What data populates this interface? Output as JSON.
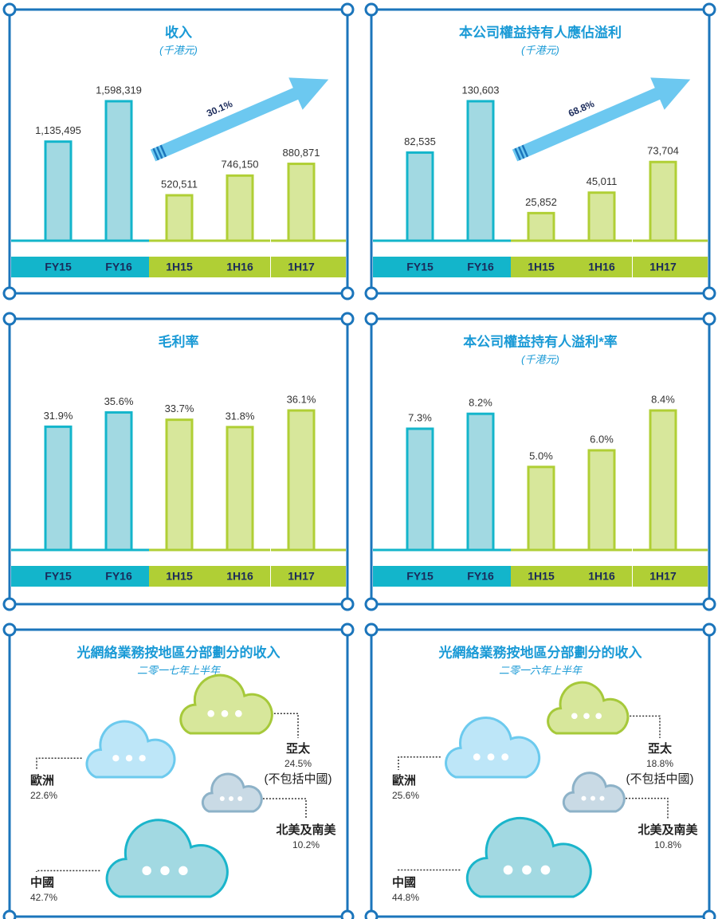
{
  "chart_data": [
    {
      "type": "bar",
      "title": "收入",
      "subtitle": "(千港元)",
      "categories": [
        "FY15",
        "FY16",
        "1H15",
        "1H16",
        "1H17"
      ],
      "values": [
        1135495,
        1598319,
        520511,
        746150,
        880871
      ],
      "value_labels": [
        "1,135,495",
        "1,598,319",
        "520,511",
        "746,150",
        "880,871"
      ],
      "colors": [
        "#a2d9e2",
        "#a2d9e2",
        "#d7e79b",
        "#d7e79b",
        "#d7e79b"
      ],
      "edge_colors": [
        "#13b5cb",
        "#13b5cb",
        "#b0cf35",
        "#b0cf35",
        "#b0cf35"
      ],
      "arrow_label": "30.1%"
    },
    {
      "type": "bar",
      "title": "本公司權益持有人應佔溢利",
      "subtitle": "(千港元)",
      "categories": [
        "FY15",
        "FY16",
        "1H15",
        "1H16",
        "1H17"
      ],
      "values": [
        82535,
        130603,
        25852,
        45011,
        73704
      ],
      "value_labels": [
        "82,535",
        "130,603",
        "25,852",
        "45,011",
        "73,704"
      ],
      "colors": [
        "#a2d9e2",
        "#a2d9e2",
        "#d7e79b",
        "#d7e79b",
        "#d7e79b"
      ],
      "edge_colors": [
        "#13b5cb",
        "#13b5cb",
        "#b0cf35",
        "#b0cf35",
        "#b0cf35"
      ],
      "arrow_label": "68.8%"
    },
    {
      "type": "bar",
      "title": "毛利率",
      "categories": [
        "FY15",
        "FY16",
        "1H15",
        "1H16",
        "1H17"
      ],
      "values": [
        31.9,
        35.6,
        33.7,
        31.8,
        36.1
      ],
      "value_labels": [
        "31.9%",
        "35.6%",
        "33.7%",
        "31.8%",
        "36.1%"
      ],
      "colors": [
        "#a2d9e2",
        "#a2d9e2",
        "#d7e79b",
        "#d7e79b",
        "#d7e79b"
      ],
      "edge_colors": [
        "#13b5cb",
        "#13b5cb",
        "#b0cf35",
        "#b0cf35",
        "#b0cf35"
      ]
    },
    {
      "type": "bar",
      "title": "本公司權益持有人溢利*率",
      "subtitle": "(千港元)",
      "categories": [
        "FY15",
        "FY16",
        "1H15",
        "1H16",
        "1H17"
      ],
      "values": [
        7.3,
        8.2,
        5,
        6,
        8.4
      ],
      "value_labels": [
        "7.3%",
        "8.2%",
        "5.0%",
        "6.0%",
        "8.4%"
      ],
      "colors": [
        "#a2d9e2",
        "#a2d9e2",
        "#d7e79b",
        "#d7e79b",
        "#d7e79b"
      ],
      "edge_colors": [
        "#13b5cb",
        "#13b5cb",
        "#b0cf35",
        "#b0cf35",
        "#b0cf35"
      ]
    },
    {
      "type": "cloud",
      "title": "光網絡業務按地區分部劃分的收入",
      "subtitle": "二零一七年上半年",
      "categories": [
        "歐洲",
        "亞太",
        "北美及南美",
        "中國"
      ],
      "values": [
        22.6,
        24.5,
        10.2,
        42.7
      ],
      "value_labels": [
        "22.6%",
        "24.5%",
        "10.2%",
        "42.7%"
      ],
      "colors": [
        "#bde6f8",
        "#d7e79b",
        "#c9dae5",
        "#a2d9e2"
      ],
      "edge_colors": [
        "#6ccaee",
        "#a6c93a",
        "#8db2c8",
        "#1ab5cb"
      ],
      "note": "(不包括中國)"
    },
    {
      "type": "cloud",
      "title": "光網絡業務按地區分部劃分的收入",
      "subtitle": "二零一六年上半年",
      "categories": [
        "歐洲",
        "亞太",
        "北美及南美",
        "中國"
      ],
      "values": [
        25.6,
        18.8,
        10.8,
        44.8
      ],
      "value_labels": [
        "25.6%",
        "18.8%",
        "10.8%",
        "44.8%"
      ],
      "colors": [
        "#bde6f8",
        "#d7e79b",
        "#c9dae5",
        "#a2d9e2"
      ],
      "edge_colors": [
        "#6ccaee",
        "#a6c93a",
        "#8db2c8",
        "#1ab5cb"
      ],
      "note": "(不包括中國)"
    }
  ]
}
